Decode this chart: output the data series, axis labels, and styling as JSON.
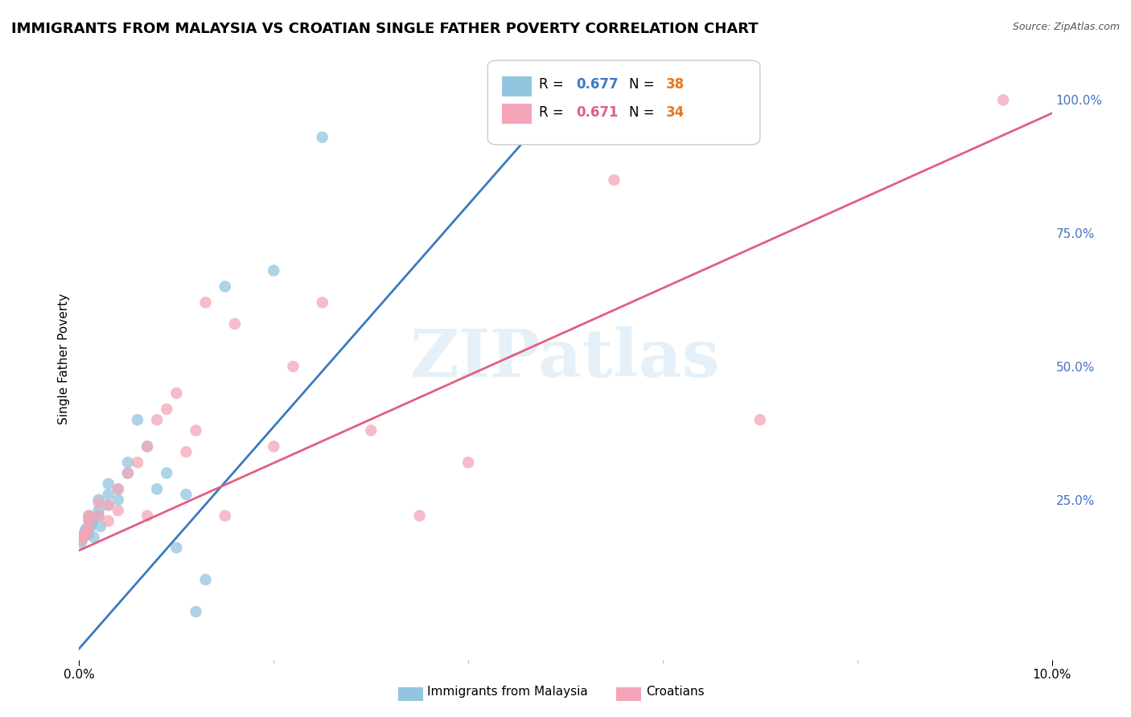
{
  "title": "IMMIGRANTS FROM MALAYSIA VS CROATIAN SINGLE FATHER POVERTY CORRELATION CHART",
  "source": "Source: ZipAtlas.com",
  "ylabel": "Single Father Poverty",
  "ylabel_right_labels": [
    "100.0%",
    "75.0%",
    "50.0%",
    "25.0%"
  ],
  "ylabel_right_positions": [
    1.0,
    0.75,
    0.5,
    0.25
  ],
  "xlim": [
    0.0,
    0.1
  ],
  "ylim": [
    -0.05,
    1.08
  ],
  "blue_R": 0.677,
  "blue_N": 38,
  "pink_R": 0.671,
  "pink_N": 34,
  "watermark": "ZIPatlas",
  "legend_label_blue": "Immigrants from Malaysia",
  "legend_label_pink": "Croatians",
  "blue_scatter_x": [
    0.0002,
    0.0003,
    0.0004,
    0.0005,
    0.0006,
    0.0007,
    0.0008,
    0.0009,
    0.001,
    0.001,
    0.001,
    0.0012,
    0.0013,
    0.0014,
    0.0015,
    0.002,
    0.002,
    0.002,
    0.0022,
    0.003,
    0.003,
    0.003,
    0.004,
    0.004,
    0.005,
    0.005,
    0.006,
    0.007,
    0.008,
    0.009,
    0.01,
    0.011,
    0.012,
    0.013,
    0.015,
    0.02,
    0.025,
    0.048
  ],
  "blue_scatter_y": [
    0.17,
    0.175,
    0.18,
    0.185,
    0.19,
    0.195,
    0.19,
    0.185,
    0.2,
    0.21,
    0.22,
    0.2,
    0.205,
    0.215,
    0.18,
    0.22,
    0.23,
    0.25,
    0.2,
    0.24,
    0.26,
    0.28,
    0.25,
    0.27,
    0.3,
    0.32,
    0.4,
    0.35,
    0.27,
    0.3,
    0.16,
    0.26,
    0.04,
    0.1,
    0.65,
    0.68,
    0.93,
    0.97
  ],
  "pink_scatter_x": [
    0.0002,
    0.0004,
    0.0006,
    0.0008,
    0.001,
    0.001,
    0.001,
    0.002,
    0.002,
    0.003,
    0.003,
    0.004,
    0.004,
    0.005,
    0.006,
    0.007,
    0.007,
    0.008,
    0.009,
    0.01,
    0.011,
    0.012,
    0.013,
    0.015,
    0.016,
    0.02,
    0.022,
    0.025,
    0.03,
    0.035,
    0.04,
    0.055,
    0.07,
    0.095
  ],
  "pink_scatter_y": [
    0.175,
    0.18,
    0.185,
    0.19,
    0.2,
    0.215,
    0.22,
    0.22,
    0.245,
    0.21,
    0.24,
    0.23,
    0.27,
    0.3,
    0.32,
    0.22,
    0.35,
    0.4,
    0.42,
    0.45,
    0.34,
    0.38,
    0.62,
    0.22,
    0.58,
    0.35,
    0.5,
    0.62,
    0.38,
    0.22,
    0.32,
    0.85,
    0.4,
    1.0
  ],
  "blue_line_x": [
    -0.001,
    0.048
  ],
  "blue_line_y": [
    -0.05,
    0.97
  ],
  "pink_line_x": [
    0.0,
    0.1
  ],
  "pink_line_y": [
    0.155,
    0.975
  ],
  "blue_color": "#92c5de",
  "pink_color": "#f4a6b8",
  "blue_line_color": "#3a7bbf",
  "pink_line_color": "#e06080",
  "background_color": "#ffffff",
  "grid_color": "#ccccdd",
  "right_axis_color": "#4472c4",
  "title_fontsize": 13,
  "axis_label_fontsize": 11,
  "legend_R_color_blue": "#3a7bbf",
  "legend_R_color_pink": "#e06080",
  "legend_N_color": "#e87820"
}
